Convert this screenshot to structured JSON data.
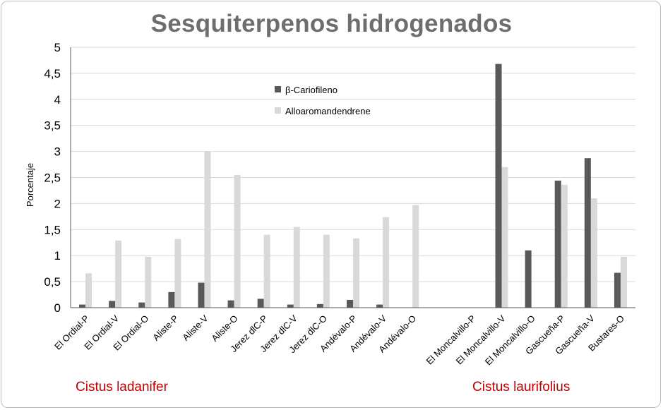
{
  "chart_data": {
    "type": "bar",
    "title": "Sesquiterpenos hidrogenados",
    "ylabel": "Porcentaje",
    "xlabel": "",
    "ylim": [
      0,
      5
    ],
    "yticks": [
      "0",
      "0,5",
      "1",
      "1,5",
      "2",
      "2,5",
      "3",
      "3,5",
      "4",
      "4,5",
      "5"
    ],
    "grid": true,
    "legend_position": "top-center",
    "categories": [
      "El Ordial-P",
      "El Ordial-V",
      "El Ordial-O",
      "Aliste-P",
      "Aliste-V",
      "Aliste-O",
      "Jerez dlC-P",
      "Jerez dlC-V",
      "Jerez dlC-O",
      "Andévalo-P",
      "Andévalo-V",
      "Andévalo-O",
      "",
      "El Moncalvillo-P",
      "El Moncalvillo-V",
      "El Moncalvillo-O",
      "Gascueña-P",
      "Gascueña-V",
      "Bustares-O"
    ],
    "series": [
      {
        "name": "β-Cariofileno",
        "color": "#595959",
        "values": [
          0.06,
          0.13,
          0.1,
          0.3,
          0.48,
          0.14,
          0.17,
          0.06,
          0.07,
          0.15,
          0.06,
          0,
          0,
          0,
          4.68,
          1.1,
          2.44,
          2.87,
          0.67
        ]
      },
      {
        "name": "Alloaromandendrene",
        "color": "#d9d9d9",
        "values": [
          0.66,
          1.29,
          0.98,
          1.32,
          3.0,
          2.55,
          1.4,
          1.55,
          1.4,
          1.33,
          1.74,
          1.97,
          0,
          0,
          2.7,
          0,
          2.36,
          2.1,
          0.98
        ]
      }
    ],
    "group_labels": [
      "Cistus ladanifer",
      "Cistus laurifolius"
    ],
    "colors": {
      "title": "#6e6e6e",
      "group_label": "#c00000",
      "grid": "#d9d9d9",
      "axis": "#595959"
    }
  }
}
